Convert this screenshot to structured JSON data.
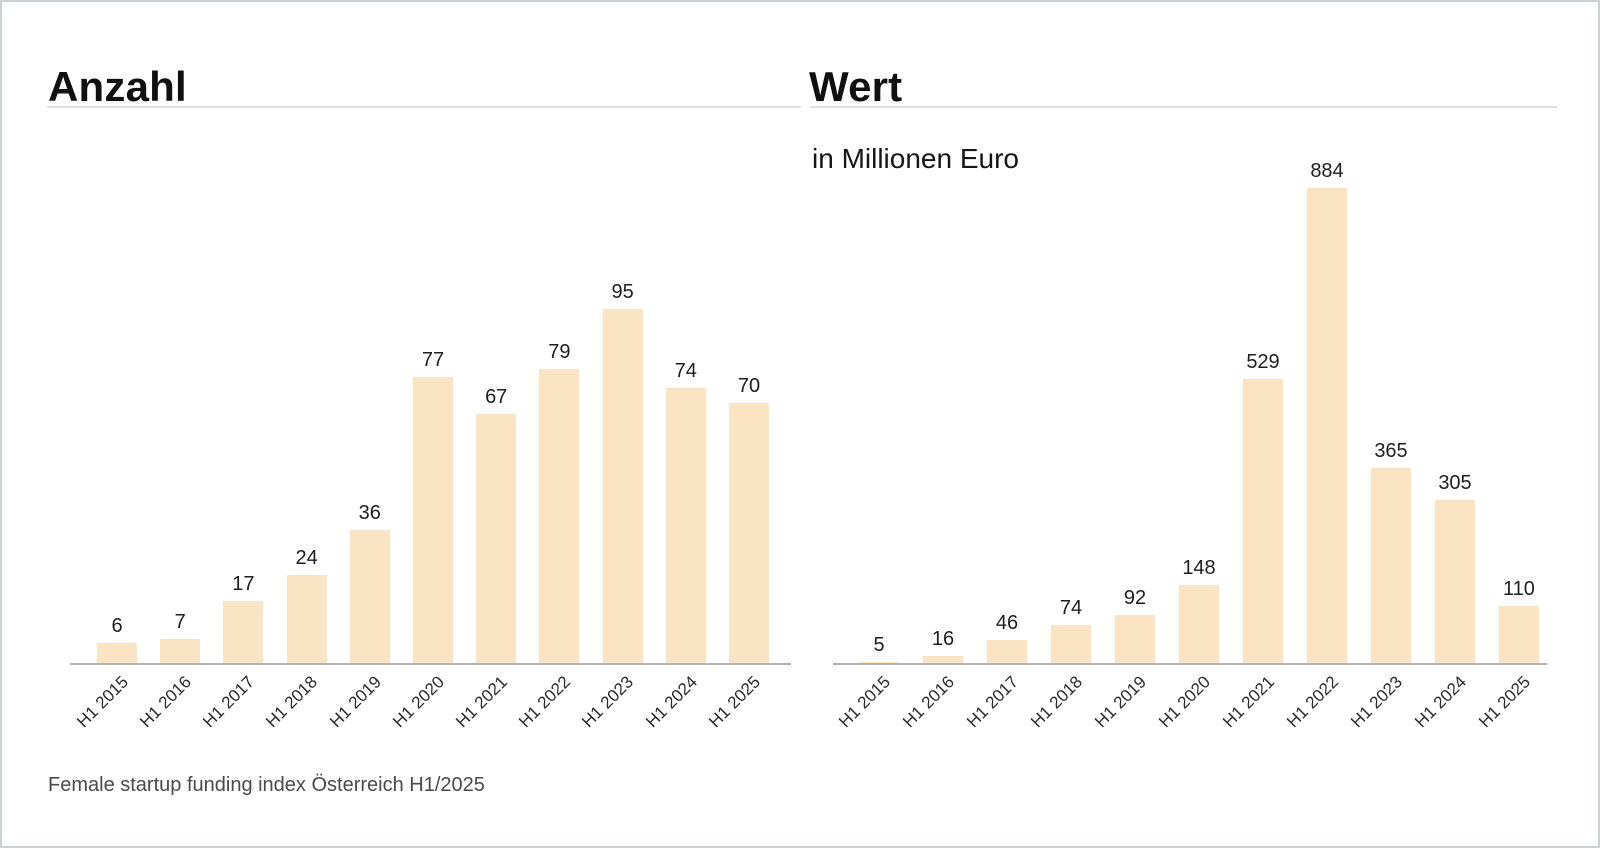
{
  "frame": {
    "caption": "Female startup funding index Österreich H1/2025"
  },
  "colors": {
    "bar_fill": "#FBE4C4",
    "axis_line": "#b3b3b3",
    "title_rule": "#dfdfdf",
    "caption_text": "#4a4a4a"
  },
  "chart_data": [
    {
      "type": "bar",
      "title": "Anzahl",
      "subtitle": "",
      "categories": [
        "H1 2015",
        "H1 2016",
        "H1 2017",
        "H1 2018",
        "H1 2019",
        "H1 2020",
        "H1 2021",
        "H1 2022",
        "H1 2023",
        "H1 2024",
        "H1 2025"
      ],
      "values": [
        6,
        7,
        17,
        24,
        36,
        77,
        67,
        79,
        95,
        74,
        70
      ],
      "xlabel": "",
      "ylabel": "",
      "ylim": [
        0,
        145
      ],
      "grid": false,
      "legend_position": "none",
      "value_labels": true,
      "bar_color": "#FBE4C4"
    },
    {
      "type": "bar",
      "title": "Wert",
      "subtitle": "in Millionen Euro",
      "categories": [
        "H1 2015",
        "H1 2016",
        "H1 2017",
        "H1 2018",
        "H1 2019",
        "H1 2020",
        "H1 2021",
        "H1 2022",
        "H1 2023",
        "H1 2024",
        "H1 2025"
      ],
      "values": [
        5,
        16,
        46,
        74,
        92,
        148,
        529,
        884,
        365,
        305,
        110
      ],
      "xlabel": "",
      "ylabel": "",
      "ylim": [
        0,
        1006
      ],
      "grid": false,
      "legend_position": "none",
      "value_labels": true,
      "bar_color": "#FBE4C4"
    }
  ]
}
